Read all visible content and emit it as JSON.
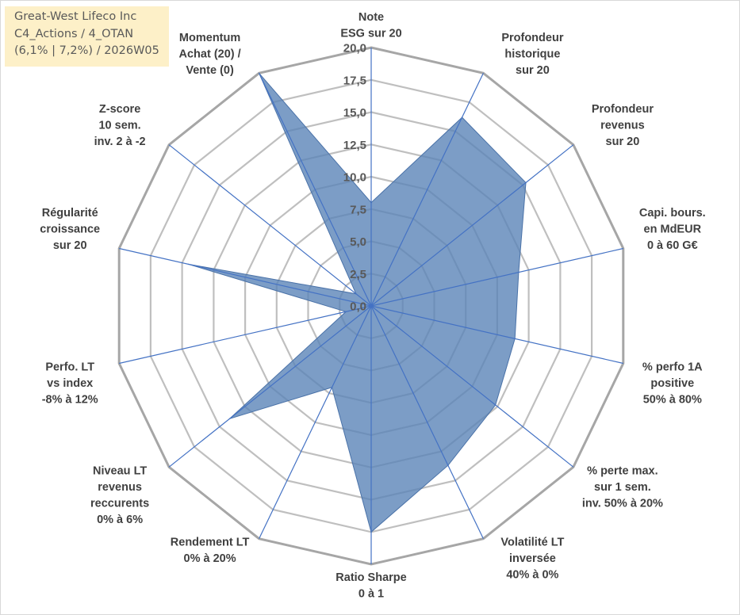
{
  "info_box": {
    "lines": [
      "Great-West Lifeco Inc",
      "C4_Actions / 4_OTAN",
      "(6,1% | 7,2%) / 2026W05"
    ]
  },
  "colors": {
    "fill": "#5b84b8",
    "fill_stroke": "#4a72a8",
    "spoke": "#4472c4",
    "grid": "#bfbfbf",
    "outer_ring": "#a6a6a6",
    "info_box_bg": "#fdf0c8"
  },
  "chart_data": {
    "type": "radar",
    "title": "",
    "rlim": [
      0,
      20
    ],
    "ticks": [
      "0,0",
      "2,5",
      "5,0",
      "7,5",
      "10,0",
      "12,5",
      "15,0",
      "17,5",
      "20,0"
    ],
    "grid": true,
    "legend": "none",
    "axes": [
      [
        "Note",
        "ESG sur 20"
      ],
      [
        "Profondeur",
        "historique",
        "sur 20"
      ],
      [
        "Profondeur",
        "revenus",
        "sur 20"
      ],
      [
        "Capi. bours.",
        "en MdEUR",
        "0 à 60 G€"
      ],
      [
        "% perfo 1A",
        "positive",
        "50% à 80%"
      ],
      [
        "% perte max.",
        "sur 1 sem.",
        "inv. 50% à 20%"
      ],
      [
        "Volatilité LT",
        "inversée",
        "40% à 0%"
      ],
      [
        "Ratio Sharpe",
        "0 à 1"
      ],
      [
        "Rendement LT",
        "0% à 20%"
      ],
      [
        "Niveau LT",
        "revenus",
        "reccurents",
        "0% à 6%"
      ],
      [
        "Perfo. LT",
        "vs index",
        "-8% à 12%"
      ],
      [
        "Régularité",
        "croissance",
        "sur 20"
      ],
      [
        "Z-score",
        "10 sem.",
        "inv. 2 à -2"
      ],
      [
        "Momentum",
        "Achat (20) /",
        "Vente (0)"
      ]
    ],
    "values": [
      8.0,
      16.2,
      15.3,
      11.7,
      11.4,
      12.3,
      13.7,
      17.5,
      7.0,
      14.0,
      2.0,
      14.5,
      1.5,
      20.0
    ]
  }
}
